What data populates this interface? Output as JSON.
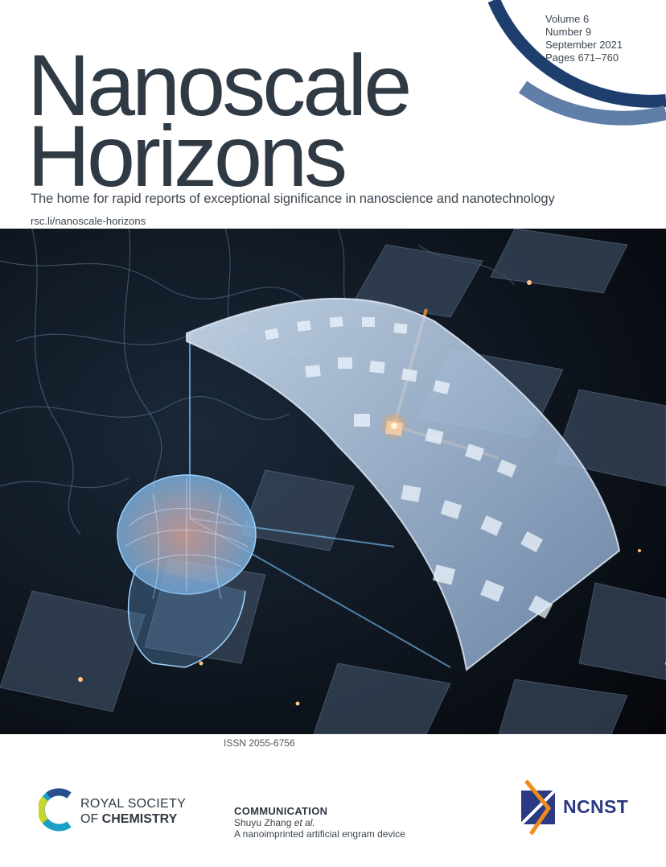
{
  "journal": {
    "title_line1": "Nanoscale",
    "title_line2": "Horizons",
    "tagline": "The home for rapid reports of exceptional significance in nanoscience and nanotechnology",
    "url": "rsc.li/nanoscale-horizons"
  },
  "issue": {
    "volume": "Volume 6",
    "number": "Number 9",
    "date": "September 2021",
    "pages": "Pages 671–760"
  },
  "issn": "ISSN 2055-6756",
  "publisher": {
    "line1": "ROYAL SOCIETY",
    "line2_prefix": "OF ",
    "line2_bold": "CHEMISTRY"
  },
  "article": {
    "type": "COMMUNICATION",
    "author": "Shuyu Zhang",
    "author_suffix": "et al.",
    "title": "A nanoimprinted artificial engram device"
  },
  "partner": {
    "name": "NCNST"
  },
  "colors": {
    "title": "#2f3a44",
    "ring_dark": "#1e3f6e",
    "ring_light": "#5f7fa8",
    "ncnst_blue": "#2b3a82",
    "ncnst_orange": "#f08a1c"
  },
  "icons": {
    "cover_art": "brain-neural-network-illustration",
    "rsc_logo": "rsc-ring-icon",
    "ncnst_logo": "ncnst-emblem-icon"
  }
}
